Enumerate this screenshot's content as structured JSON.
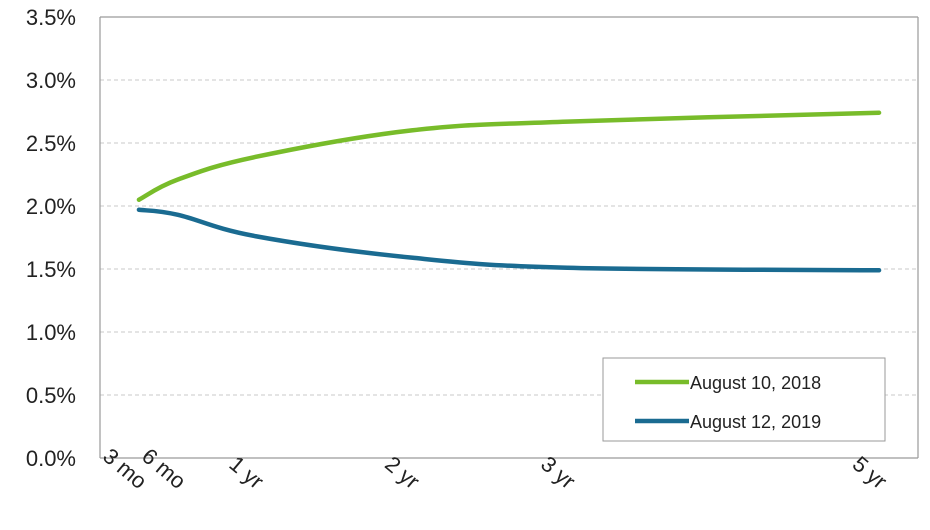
{
  "chart_data": {
    "type": "line",
    "title": "",
    "xlabel": "",
    "ylabel": "",
    "categories": [
      "3 mo",
      "6 mo",
      "1 yr",
      "2 yr",
      "3 yr",
      "5 yr"
    ],
    "x_months": [
      3,
      6,
      12,
      24,
      36,
      60
    ],
    "ylim": [
      0,
      3.5
    ],
    "yticks": [
      "0.0%",
      "0.5%",
      "1.0%",
      "1.5%",
      "2.0%",
      "2.5%",
      "3.0%",
      "3.5%"
    ],
    "grid": "horizontal dashed",
    "legend_position": "bottom-right",
    "series": [
      {
        "name": "August 10, 2018",
        "color": "#78bc2a",
        "x": [
          3,
          6,
          12,
          24,
          36,
          60
        ],
        "values": [
          2.05,
          2.21,
          2.39,
          2.6,
          2.67,
          2.74
        ]
      },
      {
        "name": "August 12, 2019",
        "color": "#1a6b91",
        "x": [
          3,
          6,
          12,
          24,
          36,
          60
        ],
        "values": [
          1.97,
          1.93,
          1.76,
          1.59,
          1.51,
          1.49
        ]
      }
    ]
  }
}
